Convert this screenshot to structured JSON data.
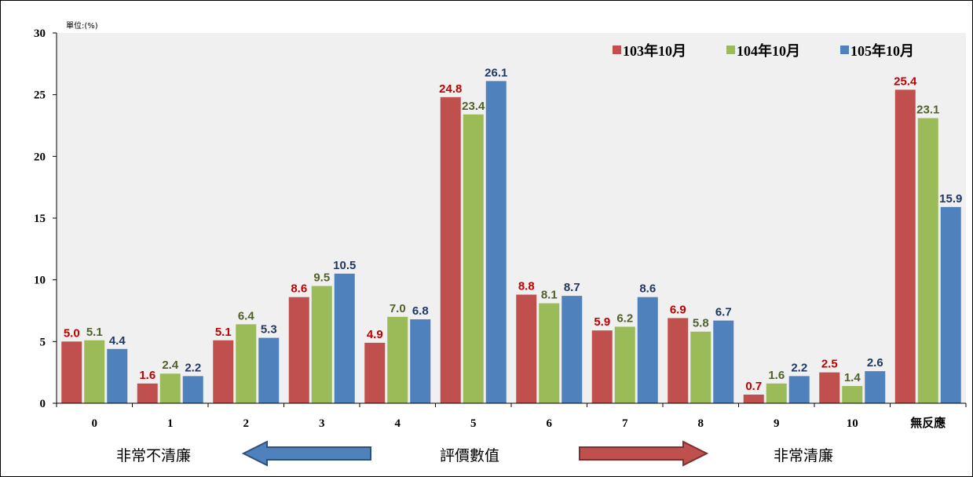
{
  "chart_data": {
    "type": "bar",
    "unit_label": "單位:(%)",
    "categories": [
      "0",
      "1",
      "2",
      "3",
      "4",
      "5",
      "6",
      "7",
      "8",
      "9",
      "10",
      "無反應"
    ],
    "ylim": [
      0,
      30
    ],
    "yticks": [
      "0",
      "5",
      "10",
      "15",
      "20",
      "25",
      "30"
    ],
    "grid": false,
    "legend_position": "top-right",
    "series": [
      {
        "name": "103年10月",
        "color": "#c0504d",
        "label_color": "#c00000",
        "values": [
          5.0,
          1.6,
          5.1,
          8.6,
          4.9,
          24.8,
          8.8,
          5.9,
          6.9,
          0.7,
          2.5,
          25.4
        ],
        "labels": [
          "5.0",
          "1.6",
          "5.1",
          "8.6",
          "4.9",
          "24.8",
          "8.8",
          "5.9",
          "6.9",
          "0.7",
          "2.5",
          "25.4"
        ]
      },
      {
        "name": "104年10月",
        "color": "#9bbb59",
        "label_color": "#4f6228",
        "values": [
          5.1,
          2.4,
          6.4,
          9.5,
          7.0,
          23.4,
          8.1,
          6.2,
          5.8,
          1.6,
          1.4,
          23.1
        ],
        "labels": [
          "5.1",
          "2.4",
          "6.4",
          "9.5",
          "7.0",
          "23.4",
          "8.1",
          "6.2",
          "5.8",
          "1.6",
          "1.4",
          "23.1"
        ]
      },
      {
        "name": "105年10月",
        "color": "#4f81bd",
        "label_color": "#1f3864",
        "values": [
          4.4,
          2.2,
          5.3,
          10.5,
          6.8,
          26.1,
          8.7,
          8.6,
          6.7,
          2.2,
          2.6,
          15.9
        ],
        "labels": [
          "4.4",
          "2.2",
          "5.3",
          "10.5",
          "6.8",
          "26.1",
          "8.7",
          "8.6",
          "6.7",
          "2.2",
          "2.6",
          "15.9"
        ]
      }
    ]
  },
  "annotations": {
    "left_text": "非常不清廉",
    "center_text": "評價數值",
    "right_text": "非常清廉",
    "left_arrow_color": "#4f81bd",
    "right_arrow_color": "#c0504d"
  }
}
